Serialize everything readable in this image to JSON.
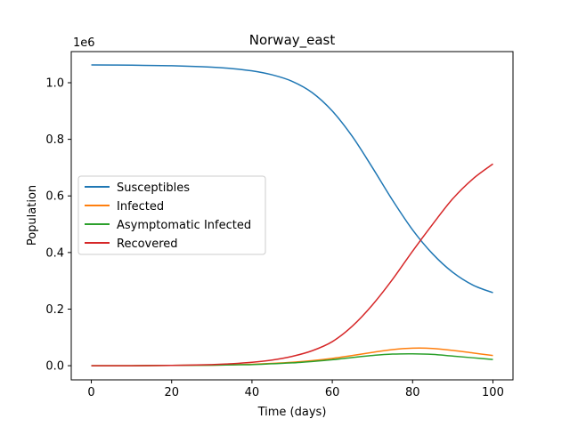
{
  "chart_data": {
    "type": "line",
    "title": "Norway_east",
    "xlabel": "Time (days)",
    "ylabel": "Population",
    "y_offset_label": "1e6",
    "xlim": [
      -5,
      105
    ],
    "ylim": [
      -0.05,
      1.11
    ],
    "x_ticks": [
      0,
      20,
      40,
      60,
      80,
      100
    ],
    "x_tick_labels": [
      "0",
      "20",
      "40",
      "60",
      "80",
      "100"
    ],
    "y_ticks": [
      0.0,
      0.2,
      0.4,
      0.6,
      0.8,
      1.0
    ],
    "y_tick_labels": [
      "0.0",
      "0.2",
      "0.4",
      "0.6",
      "0.8",
      "1.0"
    ],
    "grid": false,
    "legend_position": "center-left",
    "x": [
      0,
      10,
      20,
      30,
      35,
      40,
      45,
      50,
      55,
      60,
      65,
      70,
      75,
      80,
      85,
      90,
      95,
      100
    ],
    "series": [
      {
        "name": "Susceptibles",
        "color": "#1f77b4",
        "values": [
          1.063,
          1.062,
          1.06,
          1.055,
          1.05,
          1.042,
          1.028,
          1.005,
          0.965,
          0.9,
          0.81,
          0.7,
          0.585,
          0.48,
          0.395,
          0.33,
          0.285,
          0.258
        ]
      },
      {
        "name": "Infected",
        "color": "#ff7f0e",
        "values": [
          0.0,
          0.0,
          0.001,
          0.002,
          0.003,
          0.005,
          0.008,
          0.012,
          0.018,
          0.026,
          0.036,
          0.047,
          0.057,
          0.062,
          0.061,
          0.054,
          0.045,
          0.036
        ]
      },
      {
        "name": "Asymptomatic Infected",
        "color": "#2ca02c",
        "values": [
          0.0,
          0.0,
          0.001,
          0.002,
          0.003,
          0.004,
          0.007,
          0.01,
          0.015,
          0.021,
          0.029,
          0.036,
          0.041,
          0.042,
          0.04,
          0.034,
          0.028,
          0.022
        ]
      },
      {
        "name": "Recovered",
        "color": "#d62728",
        "values": [
          0.0,
          0.0,
          0.001,
          0.004,
          0.007,
          0.012,
          0.02,
          0.033,
          0.053,
          0.085,
          0.14,
          0.215,
          0.305,
          0.405,
          0.5,
          0.59,
          0.66,
          0.713
        ]
      }
    ]
  }
}
